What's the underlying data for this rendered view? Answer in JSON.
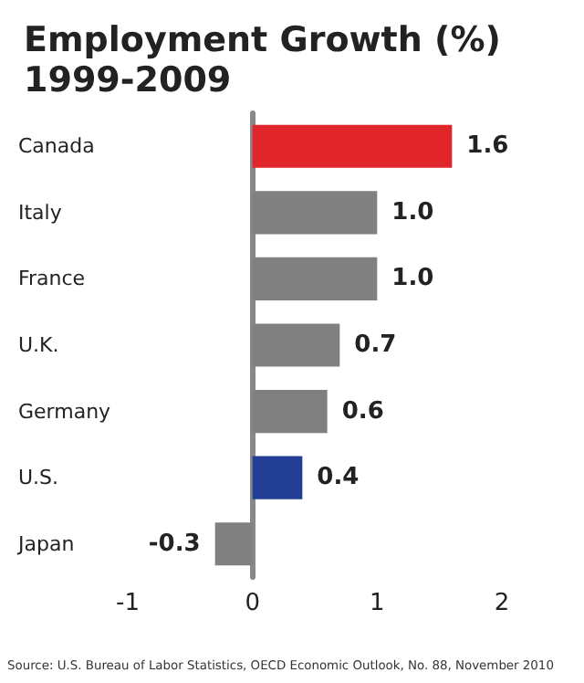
{
  "chart_data": {
    "type": "bar",
    "orientation": "horizontal",
    "title": "Employment Growth (%)\n1999-2009",
    "categories": [
      "Canada",
      "Italy",
      "France",
      "U.K.",
      "Germany",
      "U.S.",
      "Japan"
    ],
    "values": [
      1.6,
      1.0,
      1.0,
      0.7,
      0.6,
      0.4,
      -0.3
    ],
    "colors": [
      "#e0262a",
      "#808080",
      "#808080",
      "#808080",
      "#808080",
      "#233f95",
      "#808080"
    ],
    "value_labels": [
      "1.6",
      "1.0",
      "1.0",
      "0.7",
      "0.6",
      "0.4",
      "-0.3"
    ],
    "xlim": [
      -1,
      2
    ],
    "xticks": [
      -1,
      0,
      1,
      2
    ],
    "annotations": [
      "Source: U.S. Bureau of Labor Statistics, OECD Economic Outlook, No. 88, November 2010"
    ]
  }
}
